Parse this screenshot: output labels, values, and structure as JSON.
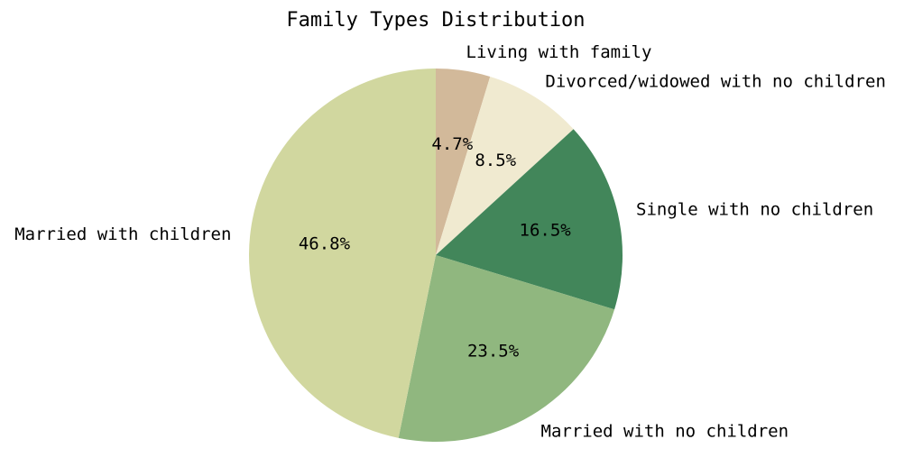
{
  "chart_data": {
    "type": "pie",
    "title": "Family Types Distribution",
    "start_angle_deg": 90,
    "direction": "clockwise",
    "categories": [
      "Living with family",
      "Divorced/widowed with no children",
      "Single with no children",
      "Married with no children",
      "Married with children"
    ],
    "values": [
      4.7,
      8.5,
      16.5,
      23.5,
      46.8
    ],
    "value_labels": [
      "4.7%",
      "8.5%",
      "16.5%",
      "23.5%",
      "46.8%"
    ],
    "colors": [
      "#d2b99a",
      "#f0ead0",
      "#42865a",
      "#90b77f",
      "#d1d79f"
    ],
    "legend": "none",
    "grid": false
  }
}
